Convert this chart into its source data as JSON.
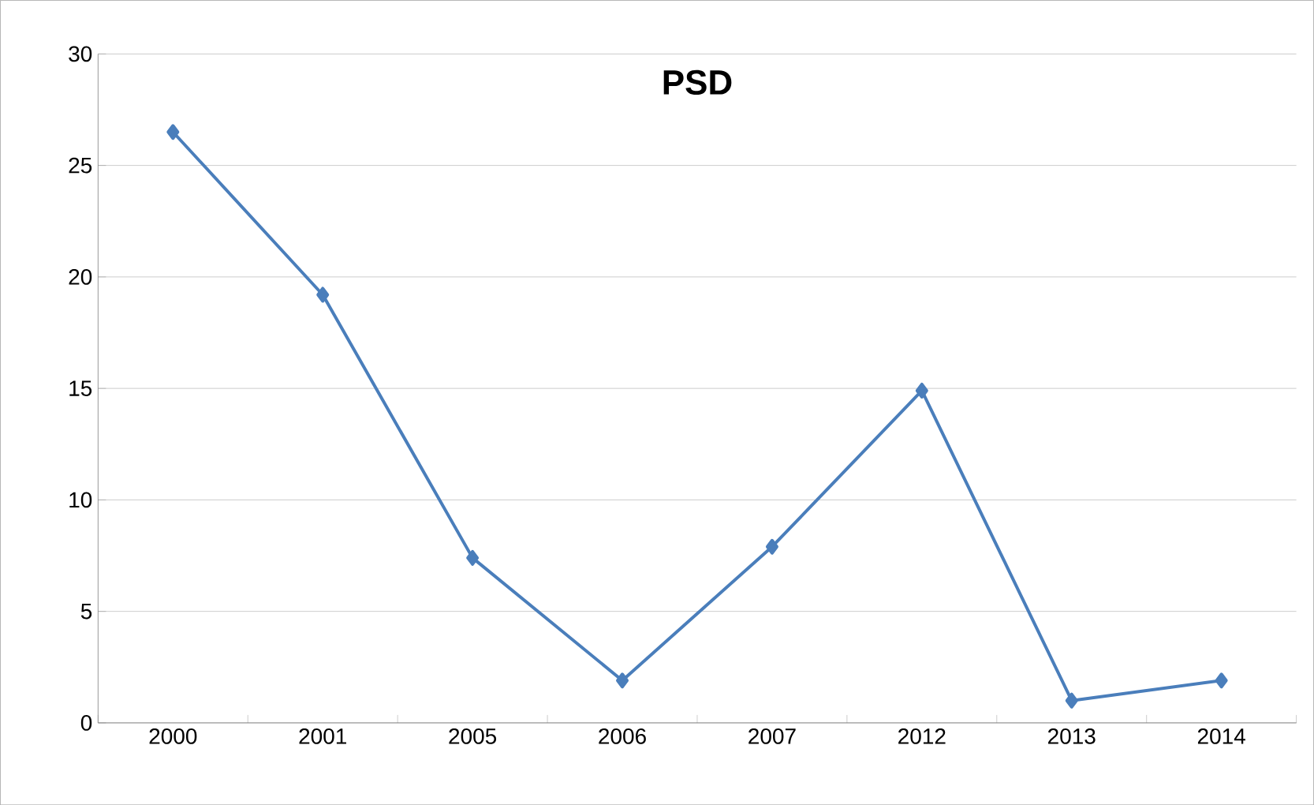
{
  "chart_data": {
    "type": "line",
    "title": "PSD",
    "categories": [
      "2000",
      "2001",
      "2005",
      "2006",
      "2007",
      "2012",
      "2013",
      "2014"
    ],
    "series": [
      {
        "color": "#4a7ebb",
        "values": [
          26.5,
          19.2,
          7.4,
          1.9,
          7.9,
          14.9,
          1.0,
          1.9
        ]
      }
    ],
    "ylim": [
      0,
      30
    ],
    "yticks": [
      0,
      5,
      10,
      15,
      20,
      25,
      30
    ],
    "grid": "y",
    "marker": "diamond",
    "line_style": "solid"
  }
}
